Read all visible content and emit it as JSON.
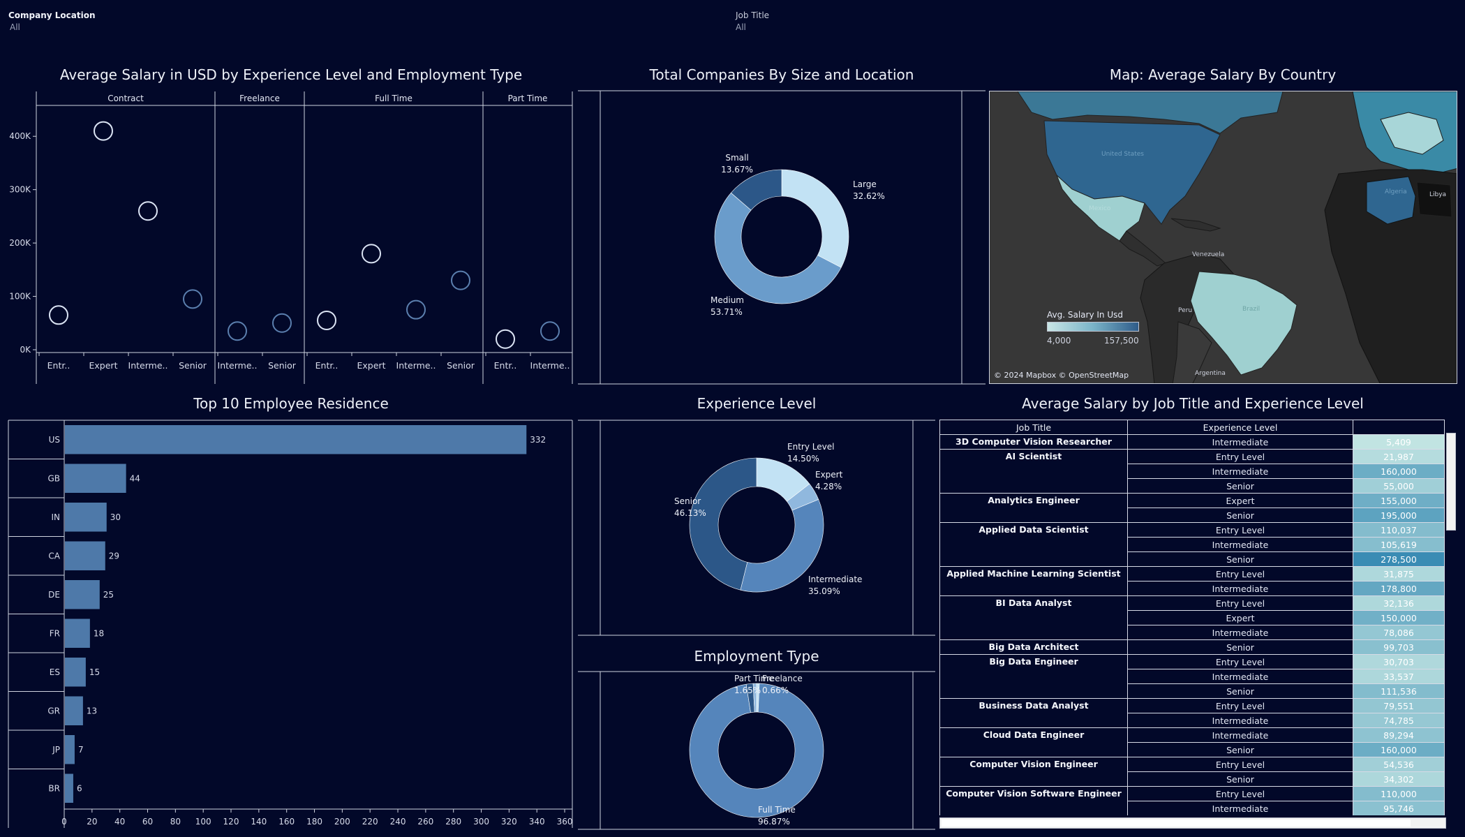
{
  "filters": {
    "location": {
      "label": "Company Location",
      "value": "All"
    },
    "job_title": {
      "label": "Job Title",
      "value": "All"
    }
  },
  "titles": {
    "scatter": "Average Salary in USD by Experience Level and Employment Type",
    "company_size": "Total Companies By Size and Location",
    "map": "Map: Average Salary By Country",
    "residence": "Top 10 Employee Residence",
    "experience": "Experience Level",
    "employment": "Employment Type",
    "table": "Average Salary by Job Title and Experience Level"
  },
  "map": {
    "legend_title": "Avg. Salary In Usd",
    "legend_min": "4,000",
    "legend_max": "157,500",
    "attribution": "© 2024 Mapbox © OpenStreetMap",
    "colors": {
      "land": "#2e2e2e",
      "ocean": "#3a3a3a",
      "low": "#c9e6e6",
      "high": "#2f5c8a"
    },
    "places": [
      "United States",
      "Mexico",
      "Algeria",
      "Libya",
      "Venezuela",
      "Peru",
      "Brazil",
      "Argentina"
    ]
  },
  "chart_data": [
    {
      "type": "scatter",
      "title": "Average Salary in USD by Experience Level and Employment Type",
      "yticks": [
        "0K",
        "100K",
        "200K",
        "300K",
        "400K"
      ],
      "ylim": [
        0,
        450000
      ],
      "panels": [
        {
          "name": "Contract",
          "categories": [
            "Entr..",
            "Expert",
            "Interme..",
            "Senior"
          ],
          "values": [
            65000,
            410000,
            260000,
            95000
          ]
        },
        {
          "name": "Freelance",
          "categories": [
            "Interme..",
            "Senior"
          ],
          "values": [
            35000,
            50000
          ]
        },
        {
          "name": "Full Time",
          "categories": [
            "Entr..",
            "Expert",
            "Interme..",
            "Senior"
          ],
          "values": [
            55000,
            180000,
            75000,
            130000
          ]
        },
        {
          "name": "Part Time",
          "categories": [
            "Entr..",
            "Interme.."
          ],
          "values": [
            20000,
            35000
          ]
        }
      ]
    },
    {
      "type": "pie",
      "title": "Total Companies By Size and Location",
      "slices": [
        {
          "label": "Large",
          "pct": "32.62%",
          "value": 32.62,
          "color": "#c2e2f4"
        },
        {
          "label": "Medium",
          "pct": "53.71%",
          "value": 53.71,
          "color": "#6a9ccb"
        },
        {
          "label": "Small",
          "pct": "13.67%",
          "value": 13.67,
          "color": "#2c5788"
        }
      ]
    },
    {
      "type": "bar",
      "title": "Top 10 Employee Residence",
      "categories": [
        "US",
        "GB",
        "IN",
        "CA",
        "DE",
        "FR",
        "ES",
        "GR",
        "JP",
        "BR"
      ],
      "values": [
        332,
        44,
        30,
        29,
        25,
        18,
        15,
        13,
        7,
        6
      ],
      "xticks": [
        0,
        20,
        40,
        60,
        80,
        100,
        120,
        140,
        160,
        180,
        200,
        220,
        240,
        260,
        280,
        300,
        320,
        340,
        360
      ],
      "xlim": [
        0,
        365
      ]
    },
    {
      "type": "pie",
      "title": "Experience Level",
      "slices": [
        {
          "label": "Entry Level",
          "pct": "14.50%",
          "value": 14.5,
          "color": "#c2e2f4"
        },
        {
          "label": "Expert",
          "pct": "4.28%",
          "value": 4.28,
          "color": "#90b8de"
        },
        {
          "label": "Intermediate",
          "pct": "35.09%",
          "value": 35.09,
          "color": "#5585bb"
        },
        {
          "label": "Senior",
          "pct": "46.13%",
          "value": 46.13,
          "color": "#2c5788"
        }
      ]
    },
    {
      "type": "pie",
      "title": "Employment Type",
      "slices": [
        {
          "label": "Freelance",
          "pct": "0.66%",
          "value": 0.66,
          "color": "#c2e2f4"
        },
        {
          "label": "Full Time",
          "pct": "96.87%",
          "value": 96.87,
          "color": "#5585bb"
        },
        {
          "label": "Part Time",
          "pct": "1.65%",
          "value": 1.65,
          "color": "#2c5788"
        },
        {
          "label": "",
          "pct": "",
          "value": 0.82,
          "color": "#90b8de"
        }
      ]
    },
    {
      "type": "table",
      "title": "Average Salary by Job Title and Experience Level",
      "headers": [
        "Job Title",
        "Experience Level"
      ],
      "rows": [
        {
          "job": "3D Computer Vision Researcher",
          "level": "Intermediate",
          "value": "5,409",
          "raw": 5409
        },
        {
          "job": "AI Scientist",
          "level": "Entry Level",
          "value": "21,987",
          "raw": 21987
        },
        {
          "job": "",
          "level": "Intermediate",
          "value": "160,000",
          "raw": 160000
        },
        {
          "job": "",
          "level": "Senior",
          "value": "55,000",
          "raw": 55000
        },
        {
          "job": "Analytics Engineer",
          "level": "Expert",
          "value": "155,000",
          "raw": 155000
        },
        {
          "job": "",
          "level": "Senior",
          "value": "195,000",
          "raw": 195000
        },
        {
          "job": "Applied Data Scientist",
          "level": "Entry Level",
          "value": "110,037",
          "raw": 110037
        },
        {
          "job": "",
          "level": "Intermediate",
          "value": "105,619",
          "raw": 105619
        },
        {
          "job": "",
          "level": "Senior",
          "value": "278,500",
          "raw": 278500
        },
        {
          "job": "Applied Machine Learning Scientist",
          "level": "Entry Level",
          "value": "31,875",
          "raw": 31875
        },
        {
          "job": "",
          "level": "Intermediate",
          "value": "178,800",
          "raw": 178800
        },
        {
          "job": "BI Data Analyst",
          "level": "Entry Level",
          "value": "32,136",
          "raw": 32136
        },
        {
          "job": "",
          "level": "Expert",
          "value": "150,000",
          "raw": 150000
        },
        {
          "job": "",
          "level": "Intermediate",
          "value": "78,086",
          "raw": 78086
        },
        {
          "job": "Big Data Architect",
          "level": "Senior",
          "value": "99,703",
          "raw": 99703
        },
        {
          "job": "Big Data Engineer",
          "level": "Entry Level",
          "value": "30,703",
          "raw": 30703
        },
        {
          "job": "",
          "level": "Intermediate",
          "value": "33,537",
          "raw": 33537
        },
        {
          "job": "",
          "level": "Senior",
          "value": "111,536",
          "raw": 111536
        },
        {
          "job": "Business Data Analyst",
          "level": "Entry Level",
          "value": "79,551",
          "raw": 79551
        },
        {
          "job": "",
          "level": "Intermediate",
          "value": "74,785",
          "raw": 74785
        },
        {
          "job": "Cloud Data Engineer",
          "level": "Intermediate",
          "value": "89,294",
          "raw": 89294
        },
        {
          "job": "",
          "level": "Senior",
          "value": "160,000",
          "raw": 160000
        },
        {
          "job": "Computer Vision Engineer",
          "level": "Entry Level",
          "value": "54,536",
          "raw": 54536
        },
        {
          "job": "",
          "level": "Senior",
          "value": "34,302",
          "raw": 34302
        },
        {
          "job": "Computer Vision Software Engineer",
          "level": "Entry Level",
          "value": "110,000",
          "raw": 110000
        },
        {
          "job": "",
          "level": "Intermediate",
          "value": "95,746",
          "raw": 95746
        }
      ]
    }
  ]
}
